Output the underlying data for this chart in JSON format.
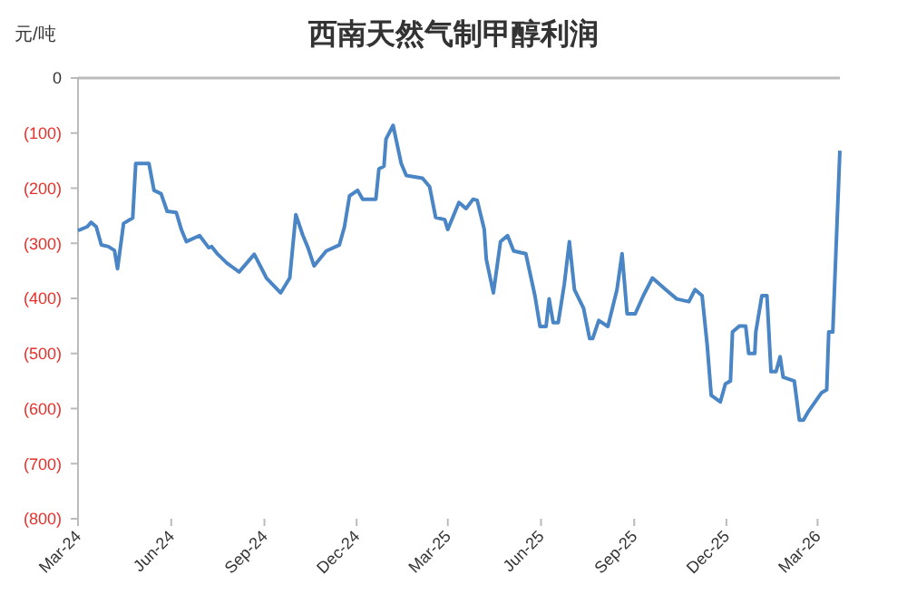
{
  "chart_data": {
    "type": "line",
    "title": "西南天然气制甲醇利润",
    "ylabel": "元/吨",
    "x": [
      "2024-03-01",
      "2024-03-10",
      "2024-03-14",
      "2024-03-19",
      "2024-03-24",
      "2024-03-31",
      "2024-04-06",
      "2024-04-09",
      "2024-04-15",
      "2024-04-24",
      "2024-04-27",
      "2024-05-10",
      "2024-05-15",
      "2024-05-22",
      "2024-05-28",
      "2024-06-06",
      "2024-06-11",
      "2024-06-16",
      "2024-06-29",
      "2024-07-08",
      "2024-07-11",
      "2024-07-17",
      "2024-07-26",
      "2024-08-07",
      "2024-08-22",
      "2024-09-03",
      "2024-09-17",
      "2024-09-26",
      "2024-10-02",
      "2024-10-09",
      "2024-10-14",
      "2024-10-20",
      "2024-11-01",
      "2024-11-14",
      "2024-11-19",
      "2024-11-24",
      "2024-12-02",
      "2024-12-07",
      "2024-12-20",
      "2024-12-23",
      "2024-12-28",
      "2024-12-30",
      "2025-01-06",
      "2025-01-14",
      "2025-01-19",
      "2025-02-04",
      "2025-02-11",
      "2025-02-17",
      "2025-02-26",
      "2025-03-01",
      "2025-03-07",
      "2025-03-12",
      "2025-03-19",
      "2025-03-26",
      "2025-03-30",
      "2025-04-06",
      "2025-04-08",
      "2025-04-15",
      "2025-04-22",
      "2025-04-29",
      "2025-05-05",
      "2025-05-17",
      "2025-05-26",
      "2025-05-31",
      "2025-06-06",
      "2025-06-09",
      "2025-06-13",
      "2025-06-18",
      "2025-06-24",
      "2025-06-29",
      "2025-07-04",
      "2025-07-13",
      "2025-07-19",
      "2025-07-22",
      "2025-07-28",
      "2025-08-06",
      "2025-08-15",
      "2025-08-20",
      "2025-08-25",
      "2025-09-02",
      "2025-09-10",
      "2025-09-19",
      "2025-10-02",
      "2025-10-13",
      "2025-10-25",
      "2025-10-31",
      "2025-11-07",
      "2025-11-12",
      "2025-11-16",
      "2025-11-25",
      "2025-11-30",
      "2025-12-05",
      "2025-12-07",
      "2025-12-14",
      "2025-12-20",
      "2025-12-23",
      "2025-12-29",
      "2025-12-30",
      "2026-01-05",
      "2026-01-10",
      "2026-01-14",
      "2026-01-19",
      "2026-01-23",
      "2026-01-26",
      "2026-02-06",
      "2026-02-11",
      "2026-02-15",
      "2026-02-20",
      "2026-03-05",
      "2026-03-10",
      "2026-03-12",
      "2026-03-16",
      "2026-03-23"
    ],
    "series": [
      {
        "color": "#4a86c5",
        "values": [
          -277,
          -270,
          -262,
          -270,
          -303,
          -306,
          -313,
          -346,
          -264,
          -254,
          -155,
          -155,
          -204,
          -210,
          -242,
          -244,
          -275,
          -297,
          -286,
          -308,
          -306,
          -320,
          -336,
          -352,
          -320,
          -363,
          -390,
          -363,
          -248,
          -286,
          -308,
          -341,
          -314,
          -303,
          -270,
          -214,
          -204,
          -220,
          -220,
          -165,
          -160,
          -111,
          -86,
          -155,
          -177,
          -182,
          -197,
          -253,
          -257,
          -275,
          -248,
          -226,
          -237,
          -220,
          -222,
          -275,
          -329,
          -390,
          -297,
          -286,
          -314,
          -319,
          -395,
          -451,
          -451,
          -401,
          -444,
          -444,
          -374,
          -297,
          -384,
          -418,
          -473,
          -473,
          -440,
          -451,
          -384,
          -319,
          -428,
          -428,
          -395,
          -363,
          -384,
          -401,
          -406,
          -384,
          -395,
          -484,
          -576,
          -588,
          -555,
          -550,
          -461,
          -450,
          -450,
          -500,
          -500,
          -461,
          -395,
          -395,
          -533,
          -533,
          -506,
          -543,
          -550,
          -621,
          -621,
          -605,
          -571,
          -566,
          -461,
          -461,
          -132
        ]
      }
    ],
    "xlim": [
      "2024-03-01",
      "2026-03-23"
    ],
    "xticks": [
      {
        "value": "2024-03-01",
        "label": "Mar-24"
      },
      {
        "value": "2024-06-01",
        "label": "Jun-24"
      },
      {
        "value": "2024-09-01",
        "label": "Sep-24"
      },
      {
        "value": "2024-12-01",
        "label": "Dec-24"
      },
      {
        "value": "2025-03-01",
        "label": "Mar-25"
      },
      {
        "value": "2025-06-01",
        "label": "Jun-25"
      },
      {
        "value": "2025-09-01",
        "label": "Sep-25"
      },
      {
        "value": "2025-12-01",
        "label": "Dec-25"
      },
      {
        "value": "2026-03-01",
        "label": "Mar-26"
      }
    ],
    "ylim": [
      -800,
      0
    ],
    "yticks": [
      0,
      {
        "value": -100,
        "label": "(100)"
      },
      {
        "value": -200,
        "label": "(200)"
      },
      {
        "value": -300,
        "label": "(300)"
      },
      {
        "value": -400,
        "label": "(400)"
      },
      {
        "value": -500,
        "label": "(500)"
      },
      {
        "value": -600,
        "label": "(600)"
      },
      {
        "value": -700,
        "label": "(700)"
      },
      {
        "value": -800,
        "label": "(800)"
      }
    ],
    "grid": false,
    "marker": "none",
    "line_style": "solid"
  }
}
